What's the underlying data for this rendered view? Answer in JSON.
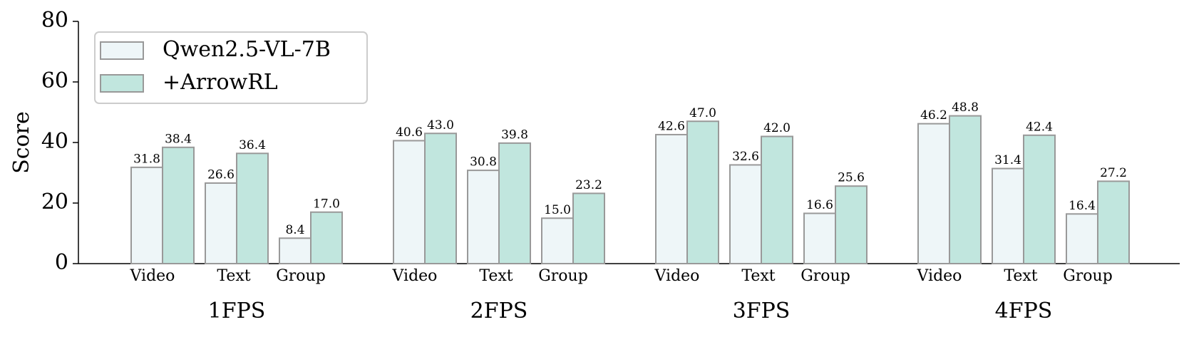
{
  "chart_data": {
    "type": "bar",
    "y_label": "Score",
    "groups": [
      "1FPS",
      "2FPS",
      "3FPS",
      "4FPS"
    ],
    "categories": [
      "Video",
      "Text",
      "Group",
      "Video",
      "Text",
      "Group",
      "Video",
      "Text",
      "Group",
      "Video",
      "Text",
      "Group"
    ],
    "series": [
      {
        "name": "Qwen2.5-VL-7B",
        "color": "#eef6f8",
        "values": [
          31.8,
          26.6,
          8.4,
          40.6,
          30.8,
          15.0,
          42.6,
          32.6,
          16.6,
          46.2,
          31.4,
          16.4
        ],
        "value_labels": [
          "31.8",
          "26.6",
          "8.4",
          "40.6",
          "30.8",
          "15.0",
          "42.6",
          "32.6",
          "16.6",
          "46.2",
          "31.4",
          "16.4"
        ]
      },
      {
        "name": "+ArrowRL",
        "color": "#c1e6de",
        "values": [
          38.4,
          36.4,
          17.0,
          43.0,
          39.8,
          23.2,
          47.0,
          42.0,
          25.6,
          48.8,
          42.4,
          27.2
        ],
        "value_labels": [
          "38.4",
          "36.4",
          "17.0",
          "43.0",
          "39.8",
          "23.2",
          "47.0",
          "42.0",
          "25.6",
          "48.8",
          "42.4",
          "27.2"
        ]
      }
    ],
    "ylim": [
      0,
      80
    ],
    "yticks": [
      0,
      20,
      40,
      60,
      80
    ],
    "grid": false,
    "legend": "upper left"
  }
}
